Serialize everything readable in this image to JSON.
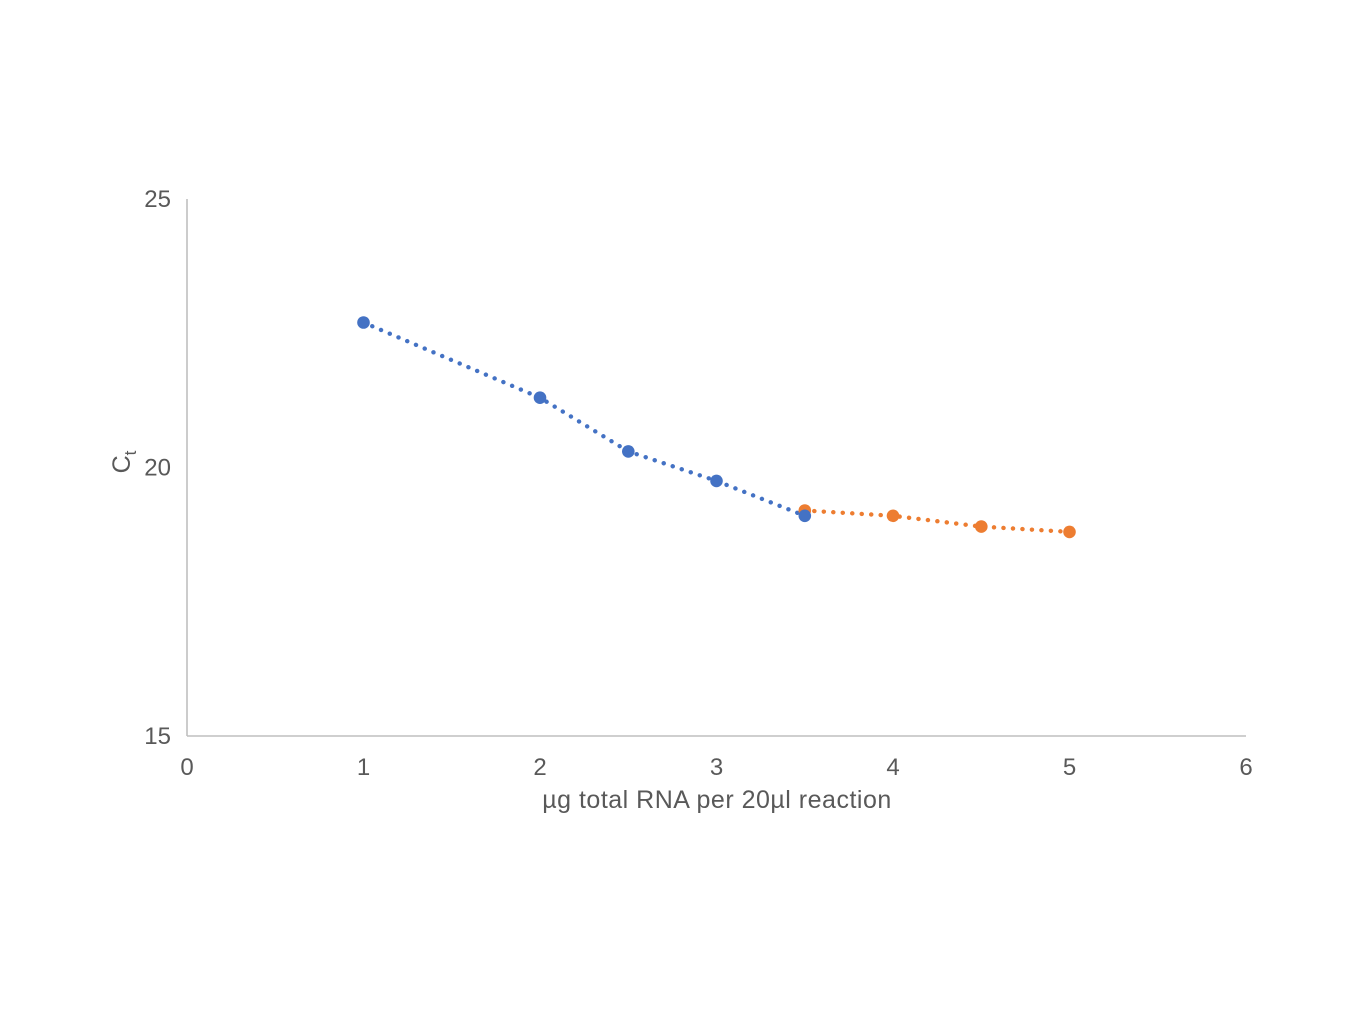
{
  "page": {
    "background_color": "#ffffff"
  },
  "chart_data": {
    "type": "scatter",
    "title": "",
    "xlabel": "µg total RNA per 20µl reaction",
    "ylabel": "Ct",
    "ylabel_main": "C",
    "ylabel_sub": "t",
    "xlim": [
      0,
      6
    ],
    "ylim": [
      15,
      25
    ],
    "x_ticks": [
      "0",
      "1",
      "2",
      "3",
      "4",
      "5",
      "6"
    ],
    "y_ticks": [
      "15",
      "20",
      "25"
    ],
    "grid": false,
    "legend_position": "none",
    "axis_color": "#bfbfbf",
    "tick_label_color": "#595959",
    "series": [
      {
        "name": "blue-series",
        "color": "#4472C4",
        "marker": "circle",
        "line_style": "dotted",
        "points": [
          [
            1,
            22.7
          ],
          [
            2,
            21.3
          ],
          [
            2.5,
            20.3
          ],
          [
            3,
            19.75
          ],
          [
            3.5,
            19.1
          ]
        ]
      },
      {
        "name": "orange-series",
        "color": "#ED7D31",
        "marker": "circle",
        "line_style": "dotted",
        "points": [
          [
            3.5,
            19.2
          ],
          [
            4,
            19.1
          ],
          [
            4.5,
            18.9
          ],
          [
            5,
            18.8
          ]
        ]
      }
    ]
  }
}
